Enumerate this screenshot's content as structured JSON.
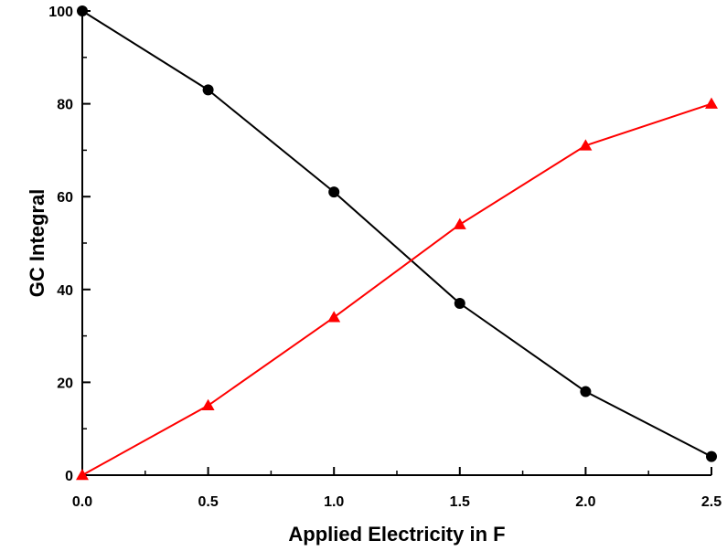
{
  "chart_data": {
    "type": "line",
    "title": "",
    "xlabel": "Applied Electricity in F",
    "ylabel": "GC Integral",
    "xlim": [
      0,
      2.5
    ],
    "ylim": [
      0,
      100
    ],
    "x_ticks": [
      "0.0",
      "0.5",
      "1.0",
      "1.5",
      "2.0",
      "2.5"
    ],
    "y_ticks": [
      "0",
      "20",
      "40",
      "60",
      "80",
      "100"
    ],
    "grid": false,
    "legend": "none",
    "x": [
      0.0,
      0.5,
      1.0,
      1.5,
      2.0,
      2.5
    ],
    "series": [
      {
        "color": "#000000",
        "marker": "circle",
        "values": [
          100,
          83,
          61,
          37,
          18,
          4
        ]
      },
      {
        "color": "#ff0000",
        "marker": "triangle",
        "values": [
          0,
          15,
          34,
          54,
          71,
          80
        ]
      }
    ]
  }
}
